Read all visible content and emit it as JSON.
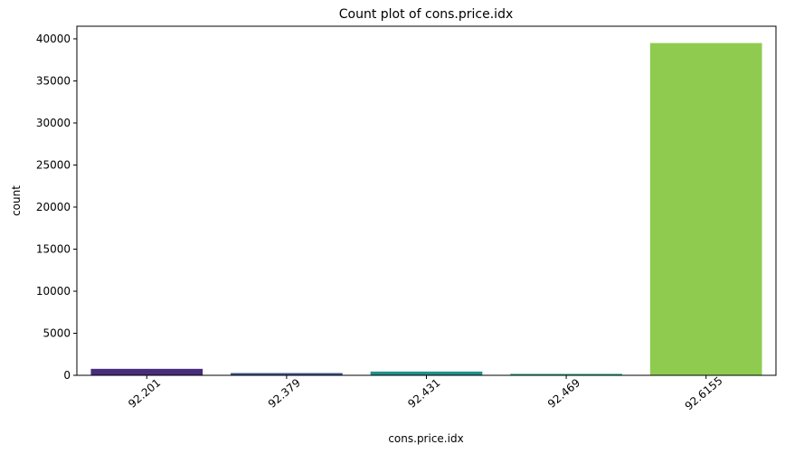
{
  "chart_data": {
    "type": "bar",
    "title": "Count plot of cons.price.idx",
    "xlabel": "cons.price.idx",
    "ylabel": "count",
    "categories": [
      "92.201",
      "92.379",
      "92.431",
      "92.469",
      "92.6155"
    ],
    "values": [
      770,
      267,
      447,
      178,
      39500
    ],
    "ylim": [
      0,
      41500
    ],
    "yticks": [
      0,
      5000,
      10000,
      15000,
      20000,
      25000,
      30000,
      35000,
      40000
    ],
    "ytick_labels": [
      "0",
      "5000",
      "10000",
      "15000",
      "20000",
      "25000",
      "30000",
      "35000",
      "40000"
    ],
    "colors": [
      "#472d7b",
      "#3b528b",
      "#21918c",
      "#28ae80",
      "#8fcb4e"
    ],
    "grid": false,
    "legend": "none"
  }
}
